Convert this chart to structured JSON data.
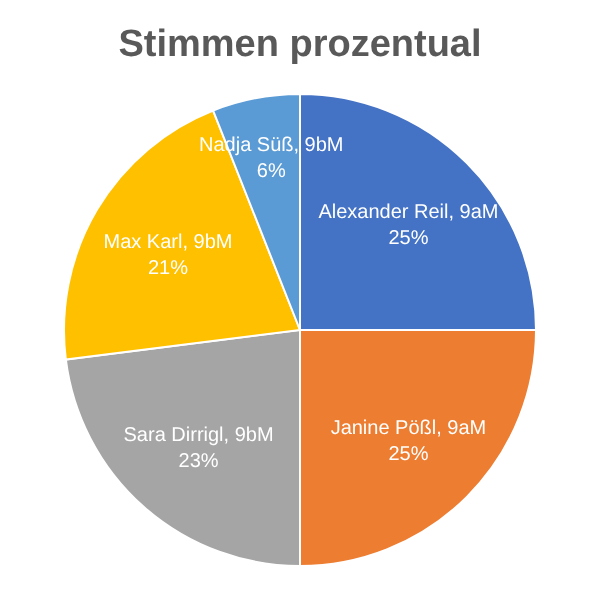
{
  "chart_data": {
    "type": "pie",
    "title": "Stimmen prozentual",
    "categories": [
      "Alexander Reil, 9aM",
      "Janine Pößl, 9aM",
      "Sara Dirrigl, 9bM",
      "Max Karl, 9bM",
      "Nadja Süß, 9bM"
    ],
    "values": [
      25,
      25,
      23,
      21,
      6
    ],
    "value_labels": [
      "25%",
      "25%",
      "23%",
      "21%",
      "6%"
    ],
    "colors": [
      "#4472c4",
      "#ed7d31",
      "#a5a5a5",
      "#ffc000",
      "#5b9bd5"
    ]
  }
}
